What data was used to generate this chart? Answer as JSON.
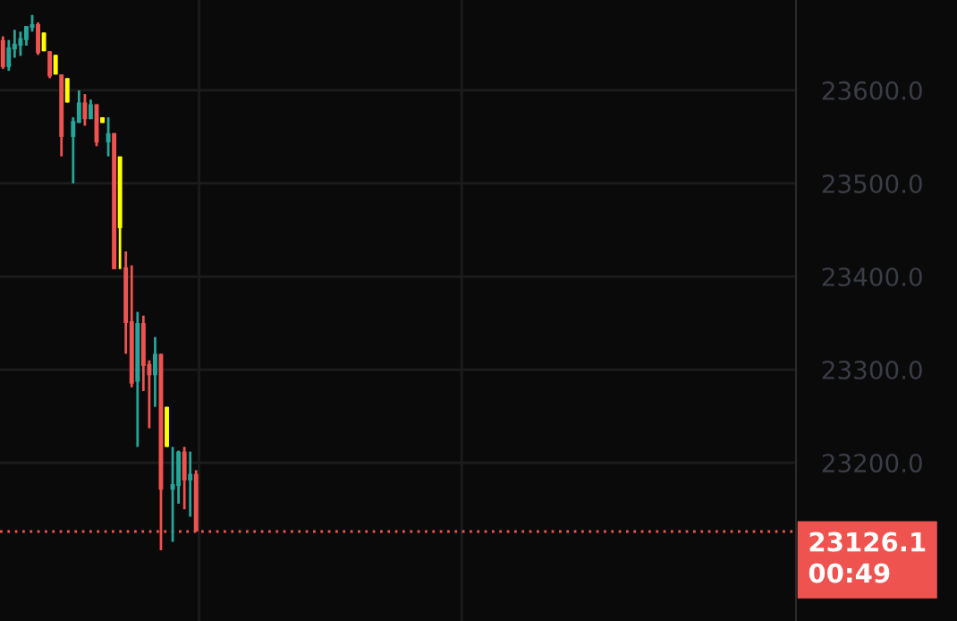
{
  "chart_data": {
    "type": "candlestick",
    "categories": [
      null,
      null,
      null,
      null,
      null,
      null,
      null,
      null,
      null,
      null,
      null,
      null,
      null,
      null,
      null,
      null,
      null,
      null,
      null,
      null,
      null,
      null,
      null,
      null,
      null,
      null,
      null,
      null,
      null,
      null,
      null,
      null,
      null,
      null,
      null,
      null,
      null,
      null,
      null,
      null,
      null,
      null,
      null,
      null,
      null,
      null,
      null,
      null,
      null,
      null,
      null,
      null,
      null,
      null,
      null,
      null,
      null,
      null,
      null,
      null,
      null,
      null,
      null,
      null,
      null,
      null,
      null,
      null,
      null,
      null,
      null,
      null,
      null,
      null,
      null,
      null,
      null,
      null,
      null,
      null,
      null,
      null,
      null,
      null,
      null,
      null,
      null,
      null,
      null,
      null,
      null,
      null,
      null,
      null,
      null,
      null,
      null,
      null,
      null,
      null,
      null,
      null,
      null,
      null,
      null,
      null,
      null,
      null,
      null,
      null,
      null,
      null,
      null,
      null,
      null,
      null,
      null,
      null,
      null,
      null,
      null,
      null,
      null,
      null,
      null,
      null,
      null,
      null,
      null,
      null,
      null,
      null,
      null,
      null,
      null,
      null
    ],
    "ohlc": [
      [
        23654,
        23658,
        23623,
        23625
      ],
      [
        23625,
        23654,
        23621,
        23646
      ],
      [
        23644,
        23665,
        23635,
        23650
      ],
      [
        23648,
        23663,
        23637,
        23656
      ],
      [
        23654,
        23669,
        23648,
        23669
      ],
      [
        23667,
        23681,
        23663,
        23671
      ],
      [
        23671,
        23673,
        23638,
        23640
      ],
      [
        23662,
        23662,
        23642,
        23642
      ],
      [
        23642,
        23642,
        23613,
        23615
      ],
      [
        23638,
        23638,
        23617,
        23617
      ],
      [
        23617,
        23617,
        23529,
        23550
      ],
      [
        23613,
        23613,
        23587,
        23587
      ],
      [
        23550,
        23571,
        23500,
        23567
      ],
      [
        23565,
        23600,
        23565,
        23587
      ],
      [
        23587,
        23596,
        23562,
        23569
      ],
      [
        23569,
        23590,
        23569,
        23585
      ],
      [
        23585,
        23585,
        23540,
        23544
      ],
      [
        23571,
        23571,
        23565,
        23565
      ],
      [
        23544,
        23571,
        23529,
        23554
      ],
      [
        23554,
        23554,
        23408,
        23408
      ],
      [
        23529,
        23529,
        23408,
        23452
      ],
      [
        23410,
        23427,
        23317,
        23350
      ],
      [
        23352,
        23412,
        23281,
        23285
      ],
      [
        23287,
        23362,
        23217,
        23350
      ],
      [
        23350,
        23358,
        23277,
        23304
      ],
      [
        23306,
        23310,
        23237,
        23294
      ],
      [
        23294,
        23335,
        23260,
        23317
      ],
      [
        23317,
        23317,
        23106,
        23171
      ],
      [
        23260,
        23260,
        23217,
        23217
      ],
      [
        23171,
        23217,
        23115,
        23177
      ],
      [
        23175,
        23213,
        23156,
        23212
      ],
      [
        23212,
        23217,
        23150,
        23181
      ],
      [
        23181,
        23212,
        23142,
        23188
      ],
      [
        23188,
        23192,
        23126.1,
        23126.1
      ],
      null,
      null,
      null,
      null,
      null,
      null,
      null,
      null,
      null,
      null,
      null,
      null,
      null,
      null,
      null,
      null,
      null,
      null,
      null,
      null,
      null,
      null,
      null,
      null,
      null,
      null,
      null,
      null,
      null,
      null,
      null,
      null,
      null,
      null,
      null,
      null,
      null,
      null,
      null,
      null,
      null,
      null,
      null,
      null,
      null,
      null,
      null,
      null,
      null,
      null,
      null,
      null,
      null,
      null,
      null,
      null,
      null,
      null,
      null,
      null,
      null,
      null,
      null,
      null,
      null,
      null,
      null,
      null,
      null,
      null,
      null,
      null,
      null,
      null,
      null,
      null,
      null,
      null,
      null,
      null,
      null,
      null,
      null,
      null,
      null,
      null,
      null,
      null,
      null,
      null,
      null,
      null,
      null,
      null,
      null,
      null,
      null,
      null,
      null,
      null,
      null,
      null
    ],
    "colors": [
      "#ef5350",
      "#26a69a",
      "#26a69a",
      "#26a69a",
      "#26a69a",
      "#26a69a",
      "#ef5350",
      "#ffff00",
      "#ef5350",
      "#ffff00",
      "#ef5350",
      "#ffff00",
      "#26a69a",
      "#26a69a",
      "#ef5350",
      "#26a69a",
      "#ef5350",
      "#ffff00",
      "#26a69a",
      "#ef5350",
      "#ffff00",
      "#ef5350",
      "#ef5350",
      "#26a69a",
      "#ef5350",
      "#ef5350",
      "#26a69a",
      "#ef5350",
      "#ffff00",
      "#26a69a",
      "#26a69a",
      "#ef5350",
      "#26a69a",
      "#ef5350",
      null,
      null,
      null,
      null,
      null,
      null,
      null,
      null,
      null,
      null,
      null,
      null,
      null,
      null,
      null,
      null,
      null,
      null,
      null,
      null,
      null,
      null,
      null,
      null,
      null,
      null,
      null,
      null,
      null,
      null,
      null,
      null,
      null,
      null,
      null,
      null,
      null,
      null,
      null,
      null,
      null,
      null,
      null,
      null,
      null,
      null,
      null,
      null,
      null,
      null,
      null,
      null,
      null,
      null,
      null,
      null,
      null,
      null,
      null,
      null,
      null,
      null,
      null,
      null,
      null,
      null,
      null,
      null,
      null,
      null,
      null,
      null,
      null,
      null,
      null,
      null,
      null,
      null,
      null,
      null,
      null,
      null,
      null,
      null,
      null,
      null,
      null,
      null,
      null,
      null,
      null,
      null,
      null,
      null,
      null,
      null,
      null,
      null,
      null,
      null,
      null,
      null
    ],
    "ylim": [
      23030,
      23697
    ],
    "yticks": [
      {
        "value": 23200,
        "label": "23200.0"
      },
      {
        "value": 23300,
        "label": "23300.0"
      },
      {
        "value": 23400,
        "label": "23400.0"
      },
      {
        "value": 23500,
        "label": "23500.0"
      },
      {
        "value": 23600,
        "label": "23600.0"
      }
    ],
    "tick_labels": "y",
    "grid": true,
    "ref_lines": [
      {
        "axis": "y",
        "value": 23126.1,
        "label": "23126.1",
        "color": "#ef5350",
        "line_style": "dotted"
      }
    ],
    "annotations": [
      "00:49"
    ]
  }
}
